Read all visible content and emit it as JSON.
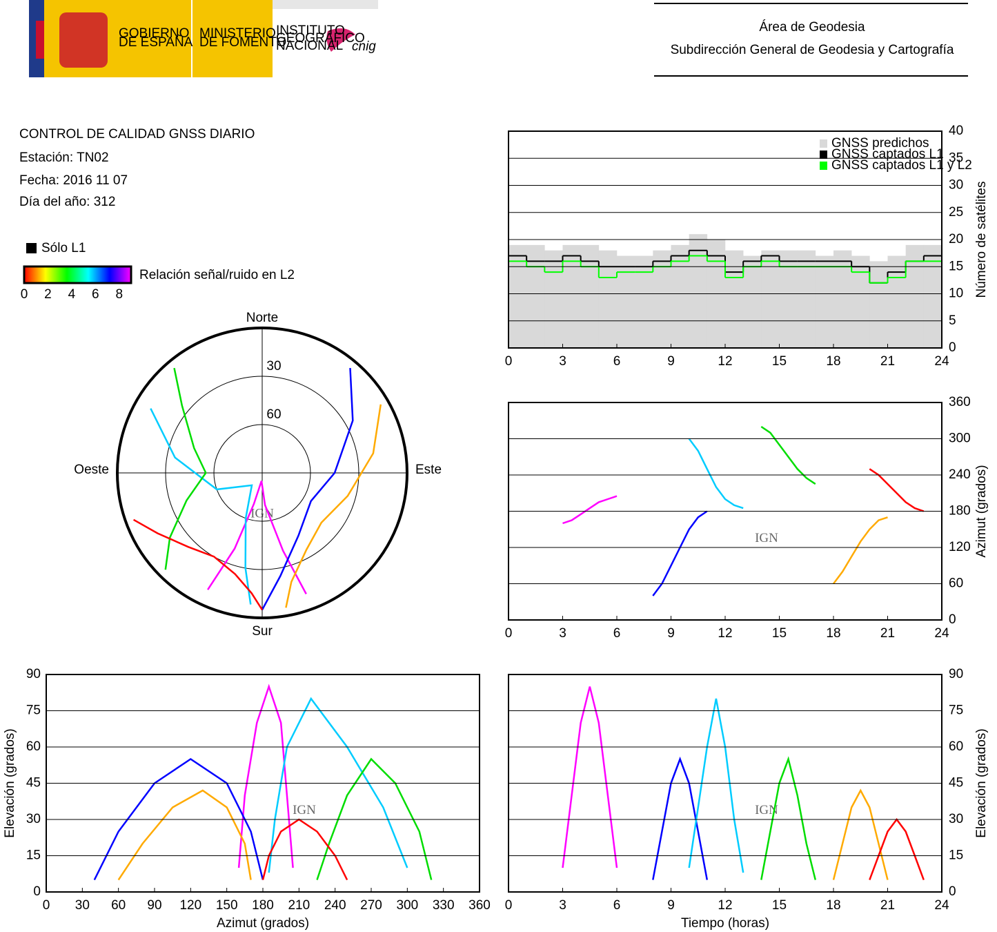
{
  "header": {
    "government": [
      "GOBIERNO",
      "DE ESPAÑA"
    ],
    "ministry": [
      "MINISTERIO",
      "DE FOMENTO"
    ],
    "institute": [
      "INSTITUTO",
      "GEOGRÁFICO",
      "NACIONAL"
    ],
    "cnig": "cnig",
    "title": "Área de Geodesia",
    "subtitle": "Subdirección General de Geodesia y Cartografía"
  },
  "info": {
    "title": "CONTROL DE CALIDAD GNSS DIARIO",
    "station": "Estación: TN02",
    "date": "Fecha: 2016 11 07",
    "doy": "Día del año: 312",
    "watermark": "IGN",
    "l1_only": {
      "label": "Sólo L1",
      "color": "#000000"
    },
    "colorbar": {
      "label": "Relación señal/ruido en L2",
      "lim": [
        0,
        9
      ],
      "ticks": [
        0,
        2,
        4,
        6,
        8
      ],
      "colors": [
        "#ff0000",
        "#ffff00",
        "#00ff00",
        "#00ffff",
        "#0000ff",
        "#ff00ff"
      ]
    }
  },
  "chart_data": [
    {
      "type": "polar",
      "directions": {
        "north": "Norte",
        "south": "Sur",
        "east": "Este",
        "west": "Oeste"
      },
      "rlim": [
        90,
        0
      ],
      "rticks": [
        30,
        60
      ],
      "series": [
        {
          "color": "#ff00ff",
          "x": [
            160,
            165,
            175,
            185,
            195,
            200,
            205
          ],
          "values": [
            10,
            40,
            70,
            85,
            70,
            40,
            10
          ]
        },
        {
          "color": "#0000ff",
          "x": [
            40,
            60,
            90,
            120,
            150,
            170,
            180
          ],
          "values": [
            5,
            25,
            45,
            55,
            45,
            25,
            5
          ]
        },
        {
          "color": "#00ccff",
          "x": [
            300,
            280,
            250,
            220,
            200,
            190,
            185
          ],
          "values": [
            10,
            35,
            60,
            80,
            60,
            30,
            8
          ]
        },
        {
          "color": "#00dd00",
          "x": [
            320,
            310,
            290,
            270,
            250,
            235,
            225
          ],
          "values": [
            5,
            25,
            45,
            55,
            40,
            20,
            5
          ]
        },
        {
          "color": "#ffaa00",
          "x": [
            60,
            80,
            105,
            130,
            150,
            165,
            170
          ],
          "values": [
            5,
            20,
            35,
            42,
            35,
            20,
            5
          ]
        },
        {
          "color": "#ff0000",
          "x": [
            250,
            240,
            225,
            210,
            195,
            185,
            180
          ],
          "values": [
            5,
            15,
            25,
            30,
            25,
            15,
            5
          ]
        }
      ]
    },
    {
      "type": "step",
      "ylabel": "Número de satélites",
      "xlim": [
        0,
        24
      ],
      "ylim": [
        0,
        40
      ],
      "xticks": [
        0,
        3,
        6,
        9,
        12,
        15,
        18,
        21,
        24
      ],
      "yticks": [
        0,
        5,
        10,
        15,
        20,
        25,
        30,
        35,
        40
      ],
      "grid": true,
      "x": [
        0,
        1,
        2,
        3,
        4,
        5,
        6,
        7,
        8,
        9,
        10,
        11,
        12,
        13,
        14,
        15,
        16,
        17,
        18,
        19,
        20,
        21,
        22,
        23
      ],
      "series": [
        {
          "name": "GNSS predichos",
          "color": "#d9d9d9",
          "fill": true,
          "values": [
            19,
            19,
            18,
            19,
            19,
            18,
            17,
            17,
            18,
            19,
            21,
            20,
            18,
            17,
            18,
            18,
            18,
            17,
            18,
            17,
            16,
            17,
            19,
            19
          ]
        },
        {
          "name": "GNSS captados L1",
          "color": "#000000",
          "values": [
            17,
            16,
            16,
            17,
            16,
            15,
            15,
            15,
            16,
            17,
            18,
            17,
            14,
            16,
            17,
            16,
            16,
            16,
            16,
            15,
            12,
            14,
            16,
            17
          ]
        },
        {
          "name": "GNSS captados L1 y L2",
          "color": "#00ff00",
          "values": [
            16,
            15,
            14,
            16,
            15,
            13,
            14,
            14,
            15,
            16,
            17,
            16,
            13,
            15,
            16,
            15,
            15,
            15,
            15,
            14,
            12,
            13,
            16,
            16
          ]
        }
      ]
    },
    {
      "type": "line",
      "ylabel": "Azimut (grados)",
      "xlim": [
        0,
        24
      ],
      "ylim": [
        0,
        360
      ],
      "xticks": [
        0,
        3,
        6,
        9,
        12,
        15,
        18,
        21,
        24
      ],
      "yticks": [
        0,
        60,
        120,
        180,
        240,
        300,
        360
      ],
      "grid": true,
      "series": [
        {
          "color": "#ff00ff",
          "x": [
            3,
            3.5,
            4,
            4.5,
            5,
            5.5,
            6
          ],
          "values": [
            160,
            165,
            175,
            185,
            195,
            200,
            205
          ]
        },
        {
          "color": "#0000ff",
          "x": [
            8,
            8.5,
            9,
            9.5,
            10,
            10.5,
            11
          ],
          "values": [
            40,
            60,
            90,
            120,
            150,
            170,
            180
          ]
        },
        {
          "color": "#00ccff",
          "x": [
            10,
            10.5,
            11,
            11.5,
            12,
            12.5,
            13
          ],
          "values": [
            300,
            280,
            250,
            220,
            200,
            190,
            185
          ]
        },
        {
          "color": "#00dd00",
          "x": [
            14,
            14.5,
            15,
            15.5,
            16,
            16.5,
            17
          ],
          "values": [
            320,
            310,
            290,
            270,
            250,
            235,
            225
          ]
        },
        {
          "color": "#ffaa00",
          "x": [
            18,
            18.5,
            19,
            19.5,
            20,
            20.5,
            21
          ],
          "values": [
            60,
            80,
            105,
            130,
            150,
            165,
            170
          ]
        },
        {
          "color": "#ff0000",
          "x": [
            20,
            20.5,
            21,
            21.5,
            22,
            22.5,
            23
          ],
          "values": [
            250,
            240,
            225,
            210,
            195,
            185,
            180
          ]
        }
      ]
    },
    {
      "type": "line",
      "ylabel": "Elevación (grados)",
      "xlabel": "Azimut (grados)",
      "xlim": [
        0,
        360
      ],
      "ylim": [
        0,
        90
      ],
      "xticks": [
        0,
        30,
        60,
        90,
        120,
        150,
        180,
        210,
        240,
        270,
        300,
        330,
        360
      ],
      "yticks": [
        0,
        15,
        30,
        45,
        60,
        75,
        90
      ],
      "grid": true,
      "series": [
        {
          "color": "#ff00ff",
          "x": [
            160,
            165,
            175,
            185,
            195,
            200,
            205
          ],
          "values": [
            10,
            40,
            70,
            85,
            70,
            40,
            10
          ]
        },
        {
          "color": "#0000ff",
          "x": [
            40,
            60,
            90,
            120,
            150,
            170,
            180
          ],
          "values": [
            5,
            25,
            45,
            55,
            45,
            25,
            5
          ]
        },
        {
          "color": "#00ccff",
          "x": [
            300,
            280,
            250,
            220,
            200,
            190,
            185
          ],
          "values": [
            10,
            35,
            60,
            80,
            60,
            30,
            8
          ]
        },
        {
          "color": "#00dd00",
          "x": [
            320,
            310,
            290,
            270,
            250,
            235,
            225
          ],
          "values": [
            5,
            25,
            45,
            55,
            40,
            20,
            5
          ]
        },
        {
          "color": "#ffaa00",
          "x": [
            60,
            80,
            105,
            130,
            150,
            165,
            170
          ],
          "values": [
            5,
            20,
            35,
            42,
            35,
            20,
            5
          ]
        },
        {
          "color": "#ff0000",
          "x": [
            250,
            240,
            225,
            210,
            195,
            185,
            180
          ],
          "values": [
            5,
            15,
            25,
            30,
            25,
            15,
            5
          ]
        }
      ]
    },
    {
      "type": "line",
      "ylabel": "Elevación (grados)",
      "xlabel": "Tiempo (horas)",
      "xlim": [
        0,
        24
      ],
      "ylim": [
        0,
        90
      ],
      "xticks": [
        0,
        3,
        6,
        9,
        12,
        15,
        18,
        21,
        24
      ],
      "yticks": [
        0,
        15,
        30,
        45,
        60,
        75,
        90
      ],
      "grid": true,
      "series": [
        {
          "color": "#ff00ff",
          "x": [
            3,
            3.5,
            4,
            4.5,
            5,
            5.5,
            6
          ],
          "values": [
            10,
            40,
            70,
            85,
            70,
            40,
            10
          ]
        },
        {
          "color": "#0000ff",
          "x": [
            8,
            8.5,
            9,
            9.5,
            10,
            10.5,
            11
          ],
          "values": [
            5,
            25,
            45,
            55,
            45,
            25,
            5
          ]
        },
        {
          "color": "#00ccff",
          "x": [
            10,
            10.5,
            11,
            11.5,
            12,
            12.5,
            13
          ],
          "values": [
            10,
            35,
            60,
            80,
            60,
            30,
            8
          ]
        },
        {
          "color": "#00dd00",
          "x": [
            14,
            14.5,
            15,
            15.5,
            16,
            16.5,
            17
          ],
          "values": [
            5,
            25,
            45,
            55,
            40,
            20,
            5
          ]
        },
        {
          "color": "#ffaa00",
          "x": [
            18,
            18.5,
            19,
            19.5,
            20,
            20.5,
            21
          ],
          "values": [
            5,
            20,
            35,
            42,
            35,
            20,
            5
          ]
        },
        {
          "color": "#ff0000",
          "x": [
            20,
            20.5,
            21,
            21.5,
            22,
            22.5,
            23
          ],
          "values": [
            5,
            15,
            25,
            30,
            25,
            15,
            5
          ]
        }
      ]
    }
  ]
}
